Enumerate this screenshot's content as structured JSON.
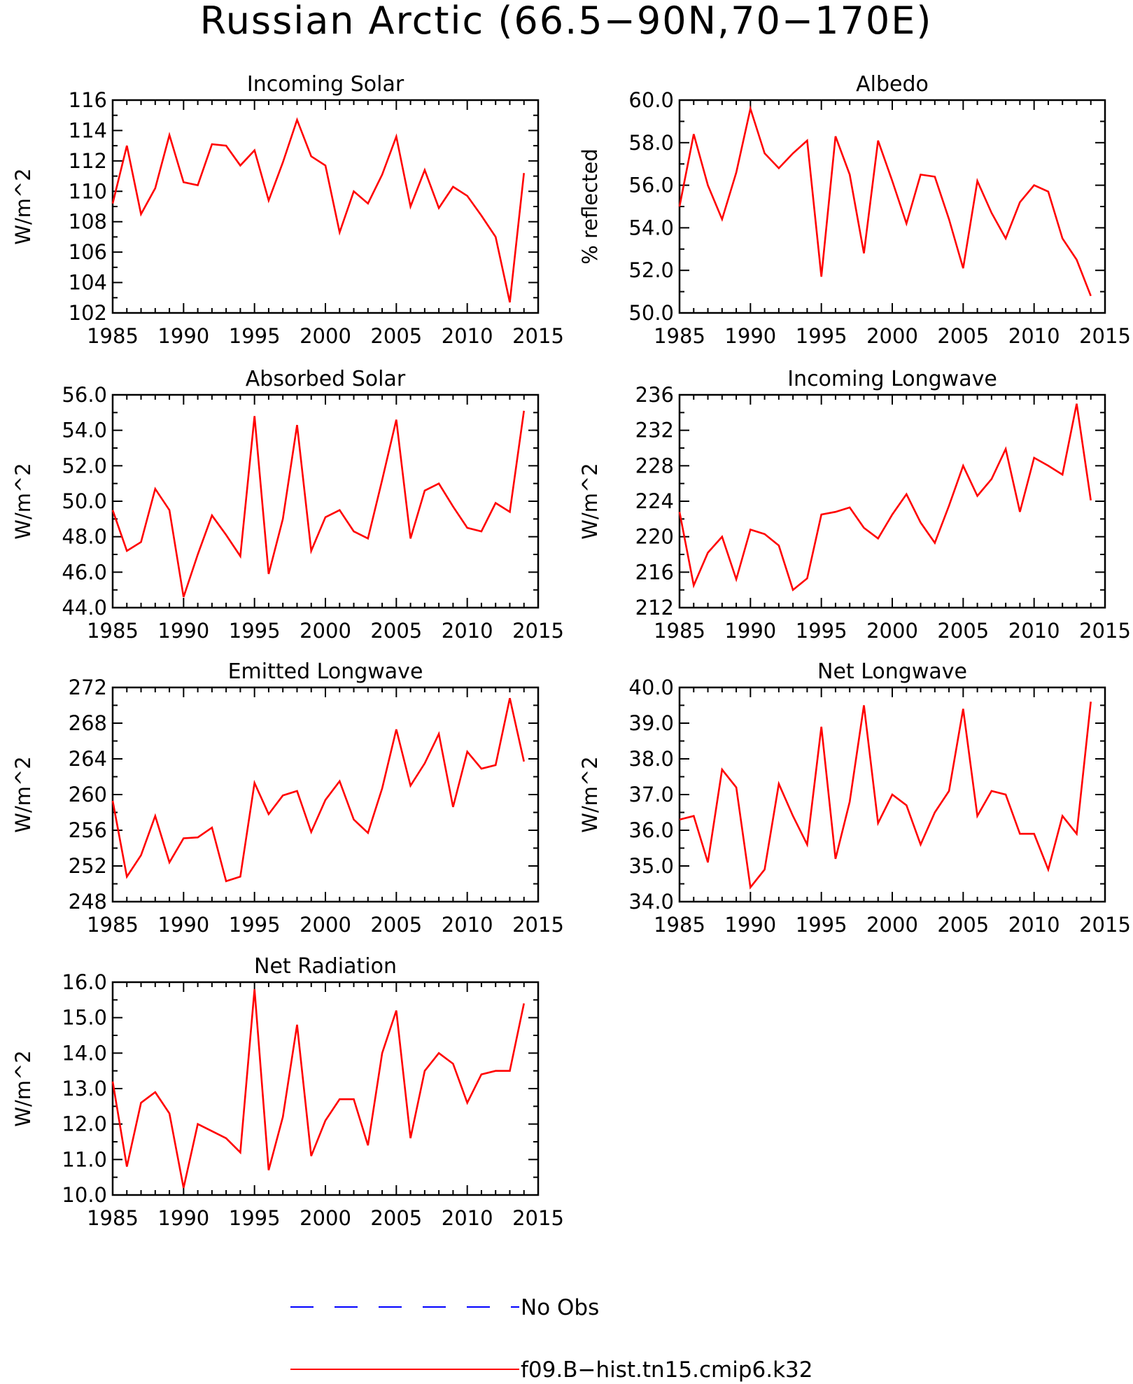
{
  "figure_title": "Russian Arctic (66.5−90N,70−170E)",
  "colors": {
    "model": "#ff0000",
    "obs": "#0000ff",
    "axis": "#000000"
  },
  "legend": {
    "position": "bottom-center",
    "entries": [
      {
        "label": "No Obs",
        "style": "dashed",
        "color": "#0000ff"
      },
      {
        "label": "f09.B−hist.tn15.cmip6.k32",
        "style": "solid",
        "color": "#ff0000"
      }
    ]
  },
  "chart_data": [
    {
      "type": "line",
      "title": "Incoming Solar",
      "ylabel": "W/m^2",
      "xlim": [
        1985,
        2015
      ],
      "ylim": [
        102,
        116
      ],
      "xticks": [
        "1985",
        "1990",
        "1995",
        "2000",
        "2005",
        "2010",
        "2015"
      ],
      "yticks": [
        "102",
        "104",
        "106",
        "108",
        "110",
        "112",
        "114",
        "116"
      ],
      "x": [
        1985,
        1986,
        1987,
        1988,
        1989,
        1990,
        1991,
        1992,
        1993,
        1994,
        1995,
        1996,
        1997,
        1998,
        1999,
        2000,
        2001,
        2002,
        2003,
        2004,
        2005,
        2006,
        2007,
        2008,
        2009,
        2010,
        2011,
        2012,
        2013,
        2014
      ],
      "series": [
        {
          "name": "f09.B−hist.tn15.cmip6.k32",
          "values": [
            109.2,
            113.0,
            108.5,
            110.2,
            113.7,
            110.6,
            110.4,
            113.1,
            113.0,
            111.7,
            112.7,
            109.4,
            111.9,
            114.7,
            112.3,
            111.7,
            107.3,
            110.0,
            109.2,
            111.1,
            113.6,
            109.0,
            111.4,
            108.9,
            110.3,
            109.7,
            108.4,
            107.0,
            102.7,
            111.2
          ]
        }
      ]
    },
    {
      "type": "line",
      "title": "Albedo",
      "ylabel": "% reflected",
      "xlim": [
        1985,
        2015
      ],
      "ylim": [
        50,
        60
      ],
      "xticks": [
        "1985",
        "1990",
        "1995",
        "2000",
        "2005",
        "2010",
        "2015"
      ],
      "yticks": [
        "50.0",
        "52.0",
        "54.0",
        "56.0",
        "58.0",
        "60.0"
      ],
      "x": [
        1985,
        1986,
        1987,
        1988,
        1989,
        1990,
        1991,
        1992,
        1993,
        1994,
        1995,
        1996,
        1997,
        1998,
        1999,
        2000,
        2001,
        2002,
        2003,
        2004,
        2005,
        2006,
        2007,
        2008,
        2009,
        2010,
        2011,
        2012,
        2013,
        2014
      ],
      "series": [
        {
          "name": "f09.B−hist.tn15.cmip6.k32",
          "values": [
            55.0,
            58.4,
            56.0,
            54.4,
            56.6,
            59.6,
            57.5,
            56.8,
            57.5,
            58.1,
            51.7,
            58.3,
            56.5,
            52.8,
            58.1,
            56.2,
            54.2,
            56.5,
            56.4,
            54.4,
            52.1,
            56.2,
            54.7,
            53.5,
            55.2,
            56.0,
            55.7,
            53.5,
            52.5,
            50.8
          ]
        }
      ]
    },
    {
      "type": "line",
      "title": "Absorbed Solar",
      "ylabel": "W/m^2",
      "xlim": [
        1985,
        2015
      ],
      "ylim": [
        44,
        56
      ],
      "xticks": [
        "1985",
        "1990",
        "1995",
        "2000",
        "2005",
        "2010",
        "2015"
      ],
      "yticks": [
        "44.0",
        "46.0",
        "48.0",
        "50.0",
        "52.0",
        "54.0",
        "56.0"
      ],
      "x": [
        1985,
        1986,
        1987,
        1988,
        1989,
        1990,
        1991,
        1992,
        1993,
        1994,
        1995,
        1996,
        1997,
        1998,
        1999,
        2000,
        2001,
        2002,
        2003,
        2004,
        2005,
        2006,
        2007,
        2008,
        2009,
        2010,
        2011,
        2012,
        2013,
        2014
      ],
      "series": [
        {
          "name": "f09.B−hist.tn15.cmip6.k32",
          "values": [
            49.5,
            47.2,
            47.7,
            50.7,
            49.5,
            44.6,
            47.0,
            49.2,
            48.1,
            46.9,
            54.8,
            45.9,
            49.0,
            54.3,
            47.2,
            49.1,
            49.5,
            48.3,
            47.9,
            51.2,
            54.6,
            47.9,
            50.6,
            51.0,
            49.7,
            48.5,
            48.3,
            49.9,
            49.4,
            55.1
          ]
        }
      ]
    },
    {
      "type": "line",
      "title": "Incoming Longwave",
      "ylabel": "W/m^2",
      "xlim": [
        1985,
        2015
      ],
      "ylim": [
        212,
        236
      ],
      "xticks": [
        "1985",
        "1990",
        "1995",
        "2000",
        "2005",
        "2010",
        "2015"
      ],
      "yticks": [
        "212",
        "216",
        "220",
        "224",
        "228",
        "232",
        "236"
      ],
      "x": [
        1985,
        1986,
        1987,
        1988,
        1989,
        1990,
        1991,
        1992,
        1993,
        1994,
        1995,
        1996,
        1997,
        1998,
        1999,
        2000,
        2001,
        2002,
        2003,
        2004,
        2005,
        2006,
        2007,
        2008,
        2009,
        2010,
        2011,
        2012,
        2013,
        2014
      ],
      "series": [
        {
          "name": "f09.B−hist.tn15.cmip6.k32",
          "values": [
            222.8,
            214.5,
            218.2,
            220.0,
            215.2,
            220.8,
            220.3,
            219.0,
            214.0,
            215.3,
            222.5,
            222.8,
            223.3,
            221.0,
            219.8,
            222.5,
            224.8,
            221.6,
            219.3,
            223.5,
            228.0,
            224.6,
            226.5,
            229.9,
            222.8,
            228.9,
            228.0,
            227.0,
            235.0,
            224.1
          ]
        }
      ]
    },
    {
      "type": "line",
      "title": "Emitted Longwave",
      "ylabel": "W/m^2",
      "xlim": [
        1985,
        2015
      ],
      "ylim": [
        248,
        272
      ],
      "xticks": [
        "1985",
        "1990",
        "1995",
        "2000",
        "2005",
        "2010",
        "2015"
      ],
      "yticks": [
        "248",
        "252",
        "256",
        "260",
        "264",
        "268",
        "272"
      ],
      "x": [
        1985,
        1986,
        1987,
        1988,
        1989,
        1990,
        1991,
        1992,
        1993,
        1994,
        1995,
        1996,
        1997,
        1998,
        1999,
        2000,
        2001,
        2002,
        2003,
        2004,
        2005,
        2006,
        2007,
        2008,
        2009,
        2010,
        2011,
        2012,
        2013,
        2014
      ],
      "series": [
        {
          "name": "f09.B−hist.tn15.cmip6.k32",
          "values": [
            259.3,
            250.8,
            253.2,
            257.6,
            252.4,
            255.1,
            255.2,
            256.3,
            250.3,
            250.8,
            261.3,
            257.8,
            259.9,
            260.4,
            255.8,
            259.4,
            261.5,
            257.2,
            255.7,
            260.7,
            267.3,
            261.0,
            263.5,
            266.8,
            258.6,
            264.8,
            262.9,
            263.3,
            270.8,
            263.7
          ]
        }
      ]
    },
    {
      "type": "line",
      "title": "Net Longwave",
      "ylabel": "W/m^2",
      "xlim": [
        1985,
        2015
      ],
      "ylim": [
        34,
        40
      ],
      "xticks": [
        "1985",
        "1990",
        "1995",
        "2000",
        "2005",
        "2010",
        "2015"
      ],
      "yticks": [
        "34.0",
        "35.0",
        "36.0",
        "37.0",
        "38.0",
        "39.0",
        "40.0"
      ],
      "x": [
        1985,
        1986,
        1987,
        1988,
        1989,
        1990,
        1991,
        1992,
        1993,
        1994,
        1995,
        1996,
        1997,
        1998,
        1999,
        2000,
        2001,
        2002,
        2003,
        2004,
        2005,
        2006,
        2007,
        2008,
        2009,
        2010,
        2011,
        2012,
        2013,
        2014
      ],
      "series": [
        {
          "name": "f09.B−hist.tn15.cmip6.k32",
          "values": [
            36.3,
            36.4,
            35.1,
            37.7,
            37.2,
            34.4,
            34.9,
            37.3,
            36.4,
            35.6,
            38.9,
            35.2,
            36.8,
            39.5,
            36.2,
            37.0,
            36.7,
            35.6,
            36.5,
            37.1,
            39.4,
            36.4,
            37.1,
            37.0,
            35.9,
            35.9,
            34.9,
            36.4,
            35.9,
            39.6
          ]
        }
      ]
    },
    {
      "type": "line",
      "title": "Net Radiation",
      "ylabel": "W/m^2",
      "xlim": [
        1985,
        2015
      ],
      "ylim": [
        10,
        16
      ],
      "xticks": [
        "1985",
        "1990",
        "1995",
        "2000",
        "2005",
        "2010",
        "2015"
      ],
      "yticks": [
        "10.0",
        "11.0",
        "12.0",
        "13.0",
        "14.0",
        "15.0",
        "16.0"
      ],
      "x": [
        1985,
        1986,
        1987,
        1988,
        1989,
        1990,
        1991,
        1992,
        1993,
        1994,
        1995,
        1996,
        1997,
        1998,
        1999,
        2000,
        2001,
        2002,
        2003,
        2004,
        2005,
        2006,
        2007,
        2008,
        2009,
        2010,
        2011,
        2012,
        2013,
        2014
      ],
      "series": [
        {
          "name": "f09.B−hist.tn15.cmip6.k32",
          "values": [
            13.2,
            10.8,
            12.6,
            12.9,
            12.3,
            10.2,
            12.0,
            11.8,
            11.6,
            11.2,
            15.8,
            10.7,
            12.2,
            14.8,
            11.1,
            12.1,
            12.7,
            12.7,
            11.4,
            14.0,
            15.2,
            11.6,
            13.5,
            14.0,
            13.7,
            12.6,
            13.4,
            13.5,
            13.5,
            15.4
          ]
        }
      ]
    }
  ]
}
